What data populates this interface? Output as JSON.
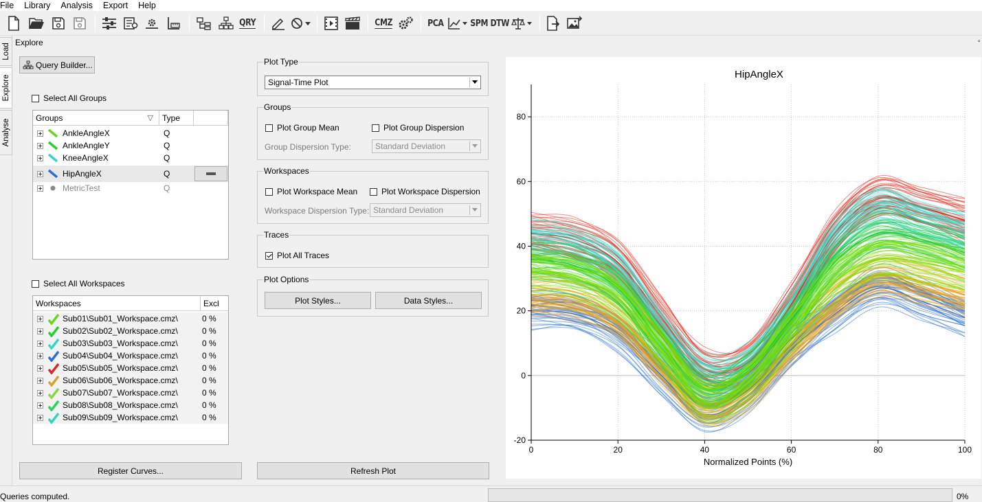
{
  "menu": [
    "File",
    "Library",
    "Analysis",
    "Export",
    "Help"
  ],
  "toolbar": {
    "icons": [
      "new-file-icon",
      "open-folder-icon",
      "save-icon",
      "save-disabled-icon",
      "sliders-icon",
      "settings-file-icon",
      "gear-box-icon",
      "ruler-icon",
      "tree-icon",
      "network-icon",
      "query-icon",
      "pen-icon",
      "forbidden-icon",
      "film-icon",
      "clapper-icon",
      "cmz-icon",
      "gears-icon",
      "pca-label",
      "chart-line-icon",
      "spm-label",
      "dtw-label",
      "balance-icon",
      "export-icon",
      "image-export-icon"
    ],
    "pca_label": "PCA",
    "spm_label": "SPM",
    "dtw_label": "DTW",
    "qry_label": "QRY",
    "cmz_label": "CMZ"
  },
  "side_tabs": [
    "Load",
    "Explore",
    "Analyse"
  ],
  "explore": {
    "title": "Explore",
    "query_builder_label": "Query Builder...",
    "select_all_groups": "Select All Groups",
    "groups_header": "Groups",
    "type_header": "Type",
    "groups": [
      {
        "name": "AnkleAngleX",
        "type": "Q",
        "color": "#6ad422"
      },
      {
        "name": "AnkleAngleY",
        "type": "Q",
        "color": "#2ecc2e"
      },
      {
        "name": "KneeAngleX",
        "type": "Q",
        "color": "#36d6c6"
      },
      {
        "name": "HipAngleX",
        "type": "Q",
        "color": "#2a6fd6"
      },
      {
        "name": "MetricTest",
        "type": "Q",
        "color": "#888888"
      }
    ],
    "select_all_workspaces": "Select All Workspaces",
    "workspaces_header": "Workspaces",
    "excl_header": "Excl",
    "workspaces": [
      {
        "name": "Sub01\\Sub01_Workspace.cmz\\",
        "excl": "0 %",
        "color": "#6ad422"
      },
      {
        "name": "Sub02\\Sub02_Workspace.cmz\\",
        "excl": "0 %",
        "color": "#2ecc2e"
      },
      {
        "name": "Sub03\\Sub03_Workspace.cmz\\",
        "excl": "0 %",
        "color": "#36d6c6"
      },
      {
        "name": "Sub04\\Sub04_Workspace.cmz\\",
        "excl": "0 %",
        "color": "#2a6fd6"
      },
      {
        "name": "Sub05\\Sub05_Workspace.cmz\\",
        "excl": "0 %",
        "color": "#d42a2a"
      },
      {
        "name": "Sub06\\Sub06_Workspace.cmz\\",
        "excl": "0 %",
        "color": "#d4a52a"
      },
      {
        "name": "Sub07\\Sub07_Workspace.cmz\\",
        "excl": "0 %",
        "color": "#8ad44a"
      },
      {
        "name": "Sub08\\Sub08_Workspace.cmz\\",
        "excl": "0 %",
        "color": "#2ad45a"
      },
      {
        "name": "Sub09\\Sub09_Workspace.cmz\\",
        "excl": "0 %",
        "color": "#3ad0c0"
      }
    ],
    "register_curves_label": "Register Curves..."
  },
  "options": {
    "plot_type_title": "Plot Type",
    "plot_type_value": "Signal-Time Plot",
    "groups_title": "Groups",
    "plot_group_mean": "Plot Group Mean",
    "plot_group_dispersion": "Plot Group Dispersion",
    "group_dispersion_type_label": "Group Dispersion Type:",
    "group_dispersion_type_value": "Standard Deviation",
    "workspaces_title": "Workspaces",
    "plot_workspace_mean": "Plot Workspace Mean",
    "plot_workspace_dispersion": "Plot Workspace Dispersion",
    "workspace_dispersion_type_label": "Workspace Dispersion Type:",
    "workspace_dispersion_type_value": "Standard Deviation",
    "traces_title": "Traces",
    "plot_all_traces": "Plot All Traces",
    "plot_all_traces_checked": true,
    "plot_options_title": "Plot Options",
    "plot_styles_label": "Plot Styles...",
    "data_styles_label": "Data Styles...",
    "refresh_plot_label": "Refresh Plot"
  },
  "chart_data": {
    "type": "line",
    "title": "HipAngleX",
    "xlabel": "Normalized Points (%)",
    "ylabel": "",
    "xlim": [
      0,
      100
    ],
    "ylim": [
      -20,
      90
    ],
    "xticks": [
      0,
      20,
      40,
      60,
      80,
      100
    ],
    "yticks": [
      -20,
      0,
      20,
      40,
      60,
      80
    ],
    "grid": true,
    "series": [
      {
        "color": "#2a6fd6",
        "x": [
          0,
          10,
          20,
          30,
          40,
          50,
          60,
          70,
          80,
          90,
          100
        ],
        "y": [
          20,
          19,
          13,
          0,
          -12,
          -6,
          8,
          19,
          27,
          23,
          18
        ]
      },
      {
        "color": "#7be000",
        "x": [
          0,
          10,
          20,
          30,
          40,
          50,
          60,
          70,
          80,
          90,
          100
        ],
        "y": [
          32,
          30,
          24,
          8,
          -8,
          -2,
          14,
          29,
          36,
          35,
          32
        ]
      },
      {
        "color": "#f0a010",
        "x": [
          0,
          10,
          20,
          30,
          40,
          50,
          60,
          70,
          80,
          90,
          100
        ],
        "y": [
          25,
          24,
          18,
          4,
          -9,
          -4,
          10,
          23,
          31,
          29,
          25
        ]
      },
      {
        "color": "#e8261a",
        "x": [
          0,
          10,
          20,
          30,
          40,
          50,
          60,
          70,
          80,
          90,
          100
        ],
        "y": [
          44,
          42,
          35,
          18,
          2,
          4,
          22,
          44,
          55,
          52,
          48
        ]
      },
      {
        "color": "#30d8c8",
        "x": [
          0,
          10,
          20,
          30,
          40,
          50,
          60,
          70,
          80,
          90,
          100
        ],
        "y": [
          42,
          40,
          32,
          14,
          0,
          3,
          20,
          42,
          52,
          48,
          44
        ]
      },
      {
        "color": "#22c83a",
        "x": [
          0,
          10,
          20,
          30,
          40,
          50,
          60,
          70,
          80,
          90,
          100
        ],
        "y": [
          36,
          34,
          27,
          10,
          -4,
          1,
          17,
          35,
          44,
          42,
          38
        ]
      }
    ]
  },
  "status": {
    "message": "Queries computed.",
    "progress_text": "0%"
  }
}
